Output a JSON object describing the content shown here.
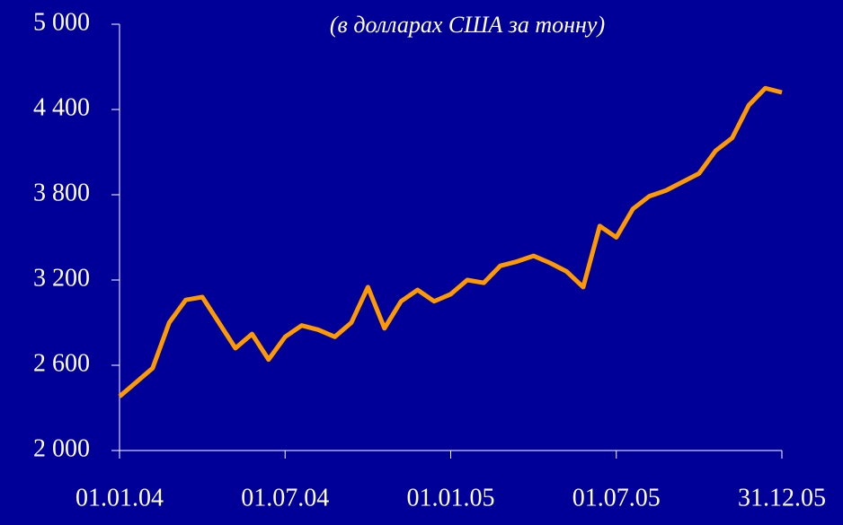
{
  "chart_data": {
    "type": "line",
    "title": "(в долларах США за тонну)",
    "categories": [
      "01.01.04",
      null,
      null,
      null,
      null,
      null,
      null,
      null,
      null,
      null,
      "01.07.04",
      null,
      null,
      null,
      null,
      null,
      null,
      null,
      null,
      null,
      "01.01.05",
      null,
      null,
      null,
      null,
      null,
      null,
      null,
      null,
      null,
      "01.07.05",
      null,
      null,
      null,
      null,
      null,
      null,
      null,
      null,
      null,
      "31.12.05"
    ],
    "series": [
      {
        "color": "#ff9900",
        "values": [
          2380,
          2480,
          2580,
          2900,
          3060,
          3080,
          2900,
          2720,
          2820,
          2640,
          2800,
          2880,
          2850,
          2800,
          2900,
          3150,
          2860,
          3050,
          3130,
          3050,
          3100,
          3200,
          3180,
          3300,
          3330,
          3370,
          3320,
          3260,
          3150,
          3580,
          3500,
          3700,
          3790,
          3830,
          3890,
          3950,
          4110,
          4200,
          4430,
          4550,
          4520
        ]
      }
    ],
    "ylim": [
      2000,
      5000
    ],
    "yticks": [
      {
        "value": 2000,
        "label": "2 000"
      },
      {
        "value": 2600,
        "label": "2 600"
      },
      {
        "value": 3200,
        "label": "3 200"
      },
      {
        "value": 3800,
        "label": "3 800"
      },
      {
        "value": 4400,
        "label": "4 400"
      },
      {
        "value": 5000,
        "label": "5 000"
      }
    ]
  }
}
